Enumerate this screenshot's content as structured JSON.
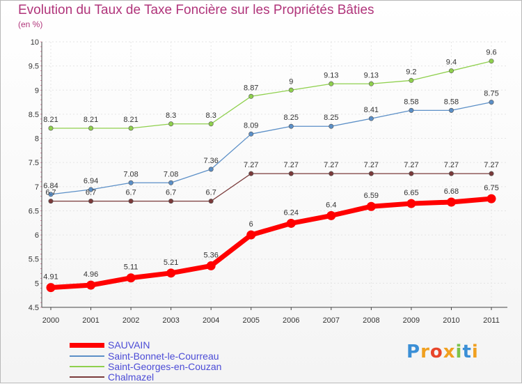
{
  "title": "Evolution du Taux de Taxe Foncière sur les Propriétés Bâties",
  "unit": "(en %)",
  "logo": "Proxiti",
  "chart_data": {
    "type": "line",
    "title": "Evolution du Taux de Taxe Foncière sur les Propriétés Bâties",
    "ylabel": "(en %)",
    "xlabel": "",
    "ylim": [
      4.5,
      10
    ],
    "yticks": [
      "4.5",
      "5",
      "5.5",
      "6",
      "6.5",
      "7",
      "7.5",
      "8",
      "8.5",
      "9",
      "9.5",
      "10"
    ],
    "categories": [
      "2000",
      "2001",
      "2002",
      "2003",
      "2004",
      "2005",
      "2006",
      "2007",
      "2008",
      "2009",
      "2010",
      "2011"
    ],
    "legend_position": "bottom-left",
    "series": [
      {
        "name": "SAUVAIN",
        "color": "#ff0000",
        "values": [
          4.91,
          4.96,
          5.11,
          5.21,
          5.36,
          6,
          6.24,
          6.4,
          6.59,
          6.65,
          6.68,
          6.75
        ],
        "labels": [
          "4.91",
          "4.96",
          "5.11",
          "5.21",
          "5.36",
          "6",
          "6.24",
          "6.4",
          "6.59",
          "6.65",
          "6.68",
          "6.75"
        ]
      },
      {
        "name": "Saint-Bonnet-le-Courreau",
        "color": "#5b8fc7",
        "values": [
          6.84,
          6.94,
          7.08,
          7.08,
          7.36,
          8.09,
          8.25,
          8.25,
          8.41,
          8.58,
          8.58,
          8.75
        ],
        "labels": [
          "6.84",
          "6.94",
          "7.08",
          "7.08",
          "7.36",
          "8.09",
          "8.25",
          "8.25",
          "8.41",
          "8.58",
          "8.58",
          "8.75"
        ]
      },
      {
        "name": "Saint-Georges-en-Couzan",
        "color": "#8fd04d",
        "values": [
          8.21,
          8.21,
          8.21,
          8.3,
          8.3,
          8.87,
          9,
          9.13,
          9.13,
          9.2,
          9.4,
          9.6
        ],
        "labels": [
          "8.21",
          "8.21",
          "8.21",
          "8.3",
          "8.3",
          "8.87",
          "9",
          "9.13",
          "9.13",
          "9.2",
          "9.4",
          "9.6"
        ]
      },
      {
        "name": "Chalmazel",
        "color": "#7a3a3a",
        "values": [
          6.7,
          6.7,
          6.7,
          6.7,
          6.7,
          7.27,
          7.27,
          7.27,
          7.27,
          7.27,
          7.27,
          7.27
        ],
        "labels": [
          "6.7",
          "6.7",
          "6.7",
          "6.7",
          "6.7",
          "7.27",
          "7.27",
          "7.27",
          "7.27",
          "7.27",
          "7.27",
          "7.27"
        ]
      }
    ]
  }
}
